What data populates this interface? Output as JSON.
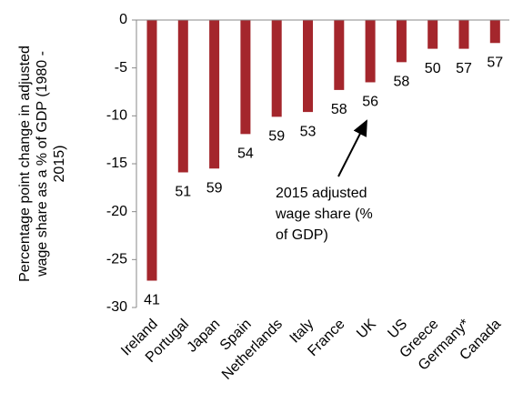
{
  "chart_data": {
    "type": "bar",
    "y_axis_label": [
      "Percentage point change in adjusted",
      "wage share as a % of GDP (1980 -",
      "2015)"
    ],
    "categories": [
      "Ireland",
      "Portugal",
      "Japan",
      "Spain",
      "Netherlands",
      "Italy",
      "France",
      "UK",
      "US",
      "Greece",
      "Germany*",
      "Canada"
    ],
    "values": [
      -27.2,
      -15.9,
      -15.5,
      -11.9,
      -10.1,
      -9.6,
      -7.3,
      -6.5,
      -4.4,
      -3.0,
      -3.0,
      -2.4
    ],
    "point_labels": [
      41,
      51,
      59,
      54,
      59,
      53,
      58,
      56,
      58,
      50,
      57,
      57
    ],
    "annotation": [
      "2015 adjusted",
      "wage share (%",
      "of GDP)"
    ],
    "color": "#a4262c",
    "ylim": [
      -30,
      0
    ],
    "yticks": [
      0,
      -5,
      -10,
      -15,
      -20,
      -25,
      -30
    ],
    "grid": false
  }
}
